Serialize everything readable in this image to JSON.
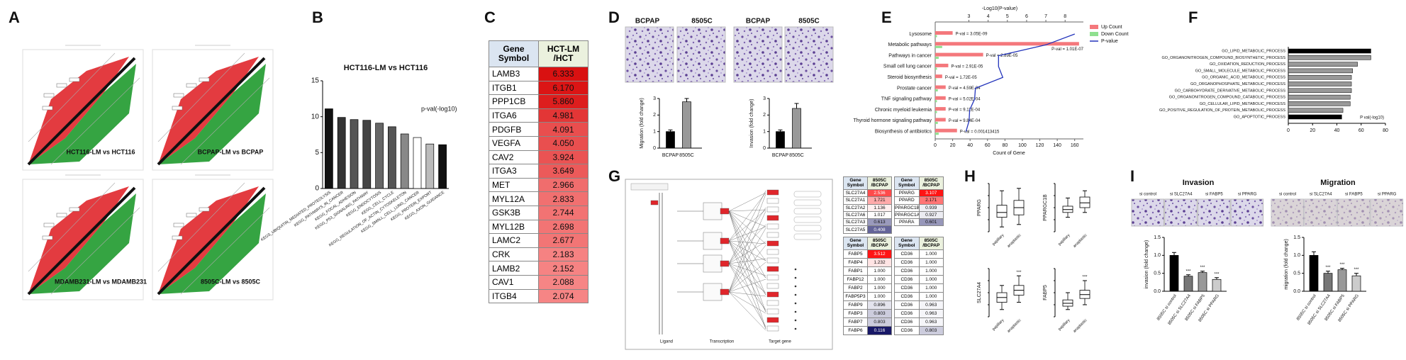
{
  "panel_labels": [
    "A",
    "B",
    "C",
    "D",
    "E",
    "F",
    "G",
    "H",
    "I"
  ],
  "A": {
    "plots": [
      "HCT116-LM vs HCT116",
      "BCPAP-LM vs BCPAP",
      "MDAMB231-LM vs MDAMB231",
      "8505C-LM vs 8505C"
    ]
  },
  "B": {
    "type": "bar",
    "title": "HCT116-LM vs HCT116",
    "legend": "p-val(-log10)",
    "categories": [
      "KEGS_UBIQUITIN_MEDIATED_PROTEOLYSIS",
      "KEGG_PATHWAYS_IN_CANCER",
      "KEGG_FOCAL_ADHESION",
      "KEGG_P53_SIGNALING_PATHWAY",
      "KEGG_ENDOCYTOSIS",
      "KEGG_CELL_CYCLE",
      "KEGG_REGULATION_OF_ACTIN_CYTOSKELETON",
      "KEGG_SMALL_CELL_LUNG_CANCER",
      "KEGG_PROTEIN_EXPORT",
      "KEGG_AXON_GUIDANCE"
    ],
    "values": [
      11.1,
      9.9,
      9.6,
      9.5,
      9.1,
      8.6,
      7.6,
      7.1,
      6.2,
      6.1
    ],
    "colors": [
      "#111111",
      "#333333",
      "#555555",
      "#444444",
      "#666666",
      "#555555",
      "#888888",
      "#ffffff",
      "#bbbbbb",
      "#111111"
    ],
    "ylim": [
      0,
      15
    ],
    "yticks": [
      0,
      5,
      10,
      15
    ]
  },
  "C": {
    "header": [
      "Gene Symbol",
      "HCT-LM /HCT"
    ],
    "rows": [
      [
        "LAMB3",
        "6.333"
      ],
      [
        "ITGB1",
        "6.170"
      ],
      [
        "PPP1CB",
        "5.860"
      ],
      [
        "ITGA6",
        "4.981"
      ],
      [
        "PDGFB",
        "4.091"
      ],
      [
        "VEGFA",
        "4.050"
      ],
      [
        "CAV2",
        "3.924"
      ],
      [
        "ITGA3",
        "3.649"
      ],
      [
        "MET",
        "2.966"
      ],
      [
        "MYL12A",
        "2.833"
      ],
      [
        "GSK3B",
        "2.744"
      ],
      [
        "MYL12B",
        "2.698"
      ],
      [
        "LAMC2",
        "2.677"
      ],
      [
        "CRK",
        "2.183"
      ],
      [
        "LAMB2",
        "2.152"
      ],
      [
        "CAV1",
        "2.088"
      ],
      [
        "ITGB4",
        "2.074"
      ]
    ]
  },
  "D": {
    "images": [
      "BCPAP",
      "8505C",
      "BCPAP",
      "8505C"
    ],
    "charts": [
      {
        "type": "bar",
        "ylabel": "Migration (fold change)",
        "categories": [
          "BCPAP",
          "8505C"
        ],
        "values": [
          1,
          2.8
        ],
        "errors": [
          0.1,
          0.2
        ],
        "colors": [
          "#000000",
          "#999999"
        ],
        "ylim": [
          0,
          3
        ],
        "yticks": [
          0,
          1,
          2,
          3
        ]
      },
      {
        "type": "bar",
        "ylabel": "Invasion (fold change)",
        "categories": [
          "BCPAP",
          "8505C"
        ],
        "values": [
          1,
          2.4
        ],
        "errors": [
          0.1,
          0.3
        ],
        "colors": [
          "#000000",
          "#999999"
        ],
        "ylim": [
          0,
          3
        ],
        "yticks": [
          0,
          1,
          2,
          3
        ]
      }
    ]
  },
  "E": {
    "type": "bar-line",
    "top_axis_label": "-Log10(P-value)",
    "bottom_axis_label": "Count of Gene",
    "categories": [
      "Lysosome",
      "Metabolic pathways",
      "Pathways in cancer",
      "Small cell lung cancer",
      "Steroid biosynthesis",
      "Prostate cancer",
      "TNF signaling pathway",
      "Chronic myeloid leukemia",
      "Thyroid hormone signaling pathway",
      "Biosynthesis of antibiotics"
    ],
    "series": [
      {
        "name": "Up Count",
        "color": "#f4787c",
        "values": [
          20,
          165,
          55,
          15,
          8,
          12,
          12,
          12,
          12,
          25
        ]
      },
      {
        "name": "Down Count",
        "color": "#8fe08f",
        "values": [
          2,
          8,
          4,
          2,
          1,
          3,
          2,
          2,
          3,
          4
        ]
      },
      {
        "name": "P-value",
        "color": "#2233bb",
        "axis": "x2",
        "values": [
          8.5,
          7.0,
          4.54,
          4.54,
          4.76,
          3.34,
          3.3,
          3.04,
          3.01,
          2.85
        ]
      }
    ],
    "value_labels": [
      "P-val = 3.05E-09",
      "P-val = 1.01E-07",
      "P-val = 2.89E-05",
      "P-val = 2.91E-05",
      "P-val = 1.72E-05",
      "P-val = 4.59E-04",
      "P-val = 5.02E-04",
      "P-val = 9.11E-04",
      "P-val = 9.84E-04",
      "P-val = 0.001413415"
    ],
    "xlim": [
      0,
      170
    ],
    "xticks": [
      0,
      20,
      40,
      60,
      80,
      100,
      120,
      140,
      160
    ],
    "x2lim": [
      1.25,
      8.95
    ],
    "x2ticks": [
      3,
      4,
      5,
      6,
      7,
      8
    ]
  },
  "F": {
    "type": "barh",
    "legend": "P val(-log10)",
    "categories": [
      "GO_LIPID_METABOLIC_PROCESS",
      "GO_ORGANONITROGEN_COMPOUND_BIOSYNTHETIC_PROCESS",
      "GO_OXIDATION_REDUCTION_PROCESS",
      "GO_SMALL_MOLECULE_METABOLIC_PROCESS",
      "GO_ORGANIC_ACID_METABOLIC_PROCESS",
      "GO_ORGANOPHOSPHATE_METABOLIC_PROCESS",
      "GO_CARBOHYDRATE_DERIVATIVE_METABOLIC_PROCESS",
      "GO_ORGANONITROGEN_COMPOUND_CATABOLIC_PROCESS",
      "GO_CELLULAR_LIPID_METABOLIC_PROCESS",
      "GO_POSITIVE_REGULATION_OF_PROTEIN_METABOLIC_PROCESS",
      "GO_APOPTOTIC_PROCESS"
    ],
    "values": [
      68,
      68,
      57,
      53,
      52,
      52,
      52,
      51,
      51,
      45,
      44
    ],
    "colors": [
      "#000000",
      "#999999",
      "#999999",
      "#999999",
      "#999999",
      "#999999",
      "#999999",
      "#999999",
      "#999999",
      "#999999",
      "#000000"
    ],
    "xlim": [
      0,
      80
    ],
    "xticks": [
      0,
      20,
      40,
      60,
      80
    ]
  },
  "G": {
    "diagram_labels": [
      "Ligand",
      "Transcription",
      "Target gene"
    ],
    "tables": [
      {
        "header": [
          "Gene Symbol",
          "8505C /BCPAP"
        ],
        "rows": [
          [
            "SLC27A4",
            "2.536"
          ],
          [
            "SLC27A1",
            "1.721"
          ],
          [
            "SLC27A2",
            "1.136"
          ],
          [
            "SLC27A6",
            "1.017"
          ],
          [
            "SLC27A3",
            "0.613"
          ],
          [
            "SLC27A5",
            "0.408"
          ]
        ]
      },
      {
        "header": [
          "Gene Symbol",
          "8505C /BCPAP"
        ],
        "rows": [
          [
            "PPARG",
            "3.107"
          ],
          [
            "PPARD",
            "2.171"
          ],
          [
            "PPARGC1B",
            "0.939"
          ],
          [
            "PPARGC1A",
            "0.927"
          ],
          [
            "PPARA",
            "0.601"
          ]
        ]
      },
      {
        "header": [
          "Gene Symbol",
          "8505C /BCPAP"
        ],
        "rows": [
          [
            "FABP5",
            "3.512"
          ],
          [
            "FABP4",
            "1.232"
          ],
          [
            "FABP1",
            "1.000"
          ],
          [
            "FABP12",
            "1.000"
          ],
          [
            "FABP2",
            "1.000"
          ],
          [
            "FABP5P3",
            "1.000"
          ],
          [
            "FABP9",
            "0.896"
          ],
          [
            "FABP3",
            "0.803"
          ],
          [
            "FABP7",
            "0.803"
          ],
          [
            "FABP6",
            "0.116"
          ]
        ]
      },
      {
        "header": [
          "Gene Symbol",
          "8505C /BCPAP"
        ],
        "rows": [
          [
            "CD36",
            "1.000"
          ],
          [
            "CD36",
            "1.000"
          ],
          [
            "CD36",
            "1.000"
          ],
          [
            "CD36",
            "1.000"
          ],
          [
            "CD36",
            "1.000"
          ],
          [
            "CD36",
            "1.000"
          ],
          [
            "CD36",
            "0.963"
          ],
          [
            "CD36",
            "0.963"
          ],
          [
            "CD36",
            "0.963"
          ],
          [
            "CD36",
            "0.803"
          ]
        ]
      }
    ]
  },
  "H": {
    "type": "box",
    "groups": [
      "papillary",
      "anaplastic"
    ],
    "ylim": [
      0,
      10
    ],
    "plots": [
      {
        "ylabel": "PPARG",
        "boxes": [
          [
            1,
            3,
            4,
            5.5,
            8.5
          ],
          [
            1.5,
            3.5,
            5,
            6.5,
            9
          ]
        ]
      },
      {
        "ylabel": "PPARGC1B",
        "boxes": [
          [
            3,
            4,
            4.6,
            5.3,
            7
          ],
          [
            4,
            5,
            6,
            7.2,
            8.5
          ]
        ]
      },
      {
        "ylabel": "SLC27A4",
        "boxes": [
          [
            1.5,
            3,
            4,
            5,
            6.5
          ],
          [
            3,
            4.5,
            5.5,
            6.5,
            8.5
          ]
        ],
        "annotation": "***"
      },
      {
        "ylabel": "FABP5",
        "boxes": [
          [
            1.5,
            2.2,
            2.8,
            3.5,
            5
          ],
          [
            2.5,
            3.8,
            4.6,
            5.5,
            7.5
          ]
        ],
        "annotation": "***"
      }
    ]
  },
  "I": {
    "images": [
      "si control",
      "si SLC27A4",
      "si FABP5",
      "si PPARG"
    ],
    "charts": [
      {
        "type": "bar",
        "title": "Invasion",
        "ylabel": "invasion (fold change)",
        "categories": [
          "8505C si control",
          "8505C si SLC27A4",
          "8505C si FABP5",
          "8505C si PPARG"
        ],
        "values": [
          1.0,
          0.42,
          0.52,
          0.33
        ],
        "errors": [
          0.08,
          0.04,
          0.04,
          0.05
        ],
        "annotations": [
          null,
          "***",
          "***",
          "***"
        ],
        "colors": [
          "#000000",
          "#777777",
          "#999999",
          "#cccccc"
        ],
        "ylim": [
          0,
          1.5
        ],
        "yticks": [
          {
            "value": 0,
            "label": "0.0"
          },
          {
            "value": 0.5,
            "label": "0.5"
          },
          {
            "value": 1,
            "label": "1.0"
          },
          {
            "value": 1.5,
            "label": "1.5"
          }
        ]
      },
      {
        "type": "bar",
        "title": "Migration",
        "ylabel": "migration (fold change)",
        "categories": [
          "8505C si control",
          "8505C si SLC27A4",
          "8505C si FABP5",
          "8505C si PPARG"
        ],
        "values": [
          1.0,
          0.5,
          0.6,
          0.43
        ],
        "errors": [
          0.1,
          0.06,
          0.04,
          0.07
        ],
        "annotations": [
          null,
          "***",
          "***",
          "***"
        ],
        "colors": [
          "#000000",
          "#777777",
          "#999999",
          "#cccccc"
        ],
        "ylim": [
          0,
          1.5
        ],
        "yticks": [
          {
            "value": 0,
            "label": "0.0"
          },
          {
            "value": 0.5,
            "label": "0.5"
          },
          {
            "value": 1,
            "label": "1.0"
          },
          {
            "value": 1.5,
            "label": "1.5"
          }
        ]
      }
    ]
  }
}
